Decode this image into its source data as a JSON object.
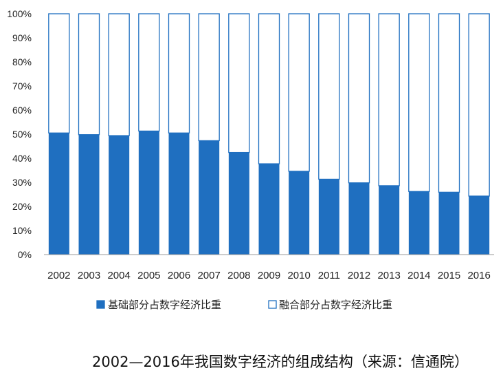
{
  "chart_data": {
    "type": "bar",
    "stacked": true,
    "percent": true,
    "categories": [
      "2002",
      "2003",
      "2004",
      "2005",
      "2006",
      "2007",
      "2008",
      "2009",
      "2010",
      "2011",
      "2012",
      "2013",
      "2014",
      "2015",
      "2016"
    ],
    "series": [
      {
        "name": "基础部分占数字经济比重",
        "color": "#1f6fc0",
        "values": [
          50.5,
          49.8,
          49.4,
          51.3,
          50.5,
          47.3,
          42.4,
          37.7,
          34.6,
          31.3,
          29.8,
          28.6,
          26.2,
          25.9,
          24.3
        ]
      },
      {
        "name": "融合部分占数字经济比重",
        "color": "#ffffff",
        "values": [
          49.5,
          50.2,
          50.6,
          48.7,
          49.5,
          52.7,
          57.6,
          62.3,
          65.4,
          68.7,
          70.2,
          71.4,
          73.8,
          74.1,
          75.7
        ]
      }
    ],
    "ylim": [
      0,
      100
    ],
    "yticks": [
      "0%",
      "10%",
      "20%",
      "30%",
      "40%",
      "50%",
      "60%",
      "70%",
      "80%",
      "90%",
      "100%"
    ],
    "grid": false,
    "legend_position": "bottom"
  },
  "caption": "2002—2016年我国数字经济的组成结构（来源：信通院）"
}
